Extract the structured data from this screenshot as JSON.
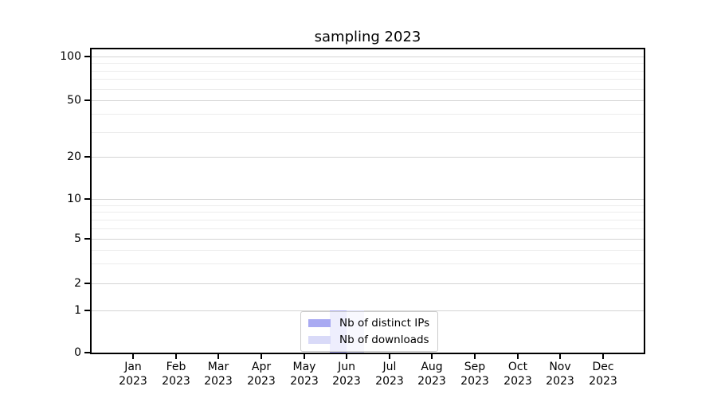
{
  "chart_data": {
    "type": "bar",
    "title": "sampling 2023",
    "categories": [
      {
        "month": "Jan",
        "year": "2023"
      },
      {
        "month": "Feb",
        "year": "2023"
      },
      {
        "month": "Mar",
        "year": "2023"
      },
      {
        "month": "Apr",
        "year": "2023"
      },
      {
        "month": "May",
        "year": "2023"
      },
      {
        "month": "Jun",
        "year": "2023"
      },
      {
        "month": "Jul",
        "year": "2023"
      },
      {
        "month": "Aug",
        "year": "2023"
      },
      {
        "month": "Sep",
        "year": "2023"
      },
      {
        "month": "Oct",
        "year": "2023"
      },
      {
        "month": "Nov",
        "year": "2023"
      },
      {
        "month": "Dec",
        "year": "2023"
      }
    ],
    "series": [
      {
        "name": "Nb of distinct IPs",
        "color": "#a9aaf2",
        "values": [
          0,
          0,
          0,
          0,
          0,
          1,
          0,
          0,
          0,
          0,
          0,
          0
        ]
      },
      {
        "name": "Nb of downloads",
        "color": "#d9daf8",
        "values": [
          0,
          0,
          0,
          0,
          0,
          1,
          0,
          0,
          0,
          0,
          0,
          0
        ]
      }
    ],
    "y_axis": {
      "scale": "symlog",
      "ticks": [
        0,
        1,
        2,
        5,
        10,
        20,
        50,
        100
      ],
      "minor_gridlines": [
        3,
        4,
        6,
        7,
        8,
        9,
        30,
        40,
        60,
        70,
        80,
        90
      ]
    },
    "legend": {
      "position": "lower center"
    },
    "grid": true,
    "colors": {
      "major_grid": "#d4d4d4",
      "minor_grid": "#ececec",
      "axis": "#000000"
    }
  }
}
